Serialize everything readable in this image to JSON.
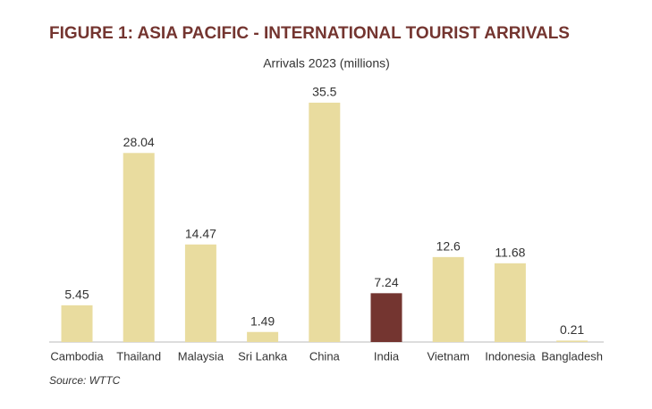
{
  "chart_data": {
    "type": "bar",
    "title": "FIGURE 1: ASIA PACIFIC - INTERNATIONAL TOURIST ARRIVALS",
    "subtitle": "Arrivals 2023 (millions)",
    "source": "Source: WTTC",
    "categories": [
      "Cambodia",
      "Thailand",
      "Malaysia",
      "Sri Lanka",
      "China",
      "India",
      "Vietnam",
      "Indonesia",
      "Bangladesh"
    ],
    "values": [
      5.45,
      28.04,
      14.47,
      1.49,
      35.5,
      7.24,
      12.6,
      11.68,
      0.21
    ],
    "colors": [
      "#e9dc9f",
      "#e9dc9f",
      "#e9dc9f",
      "#e9dc9f",
      "#e9dc9f",
      "#743530",
      "#e9dc9f",
      "#e9dc9f",
      "#e9dc9f"
    ]
  }
}
